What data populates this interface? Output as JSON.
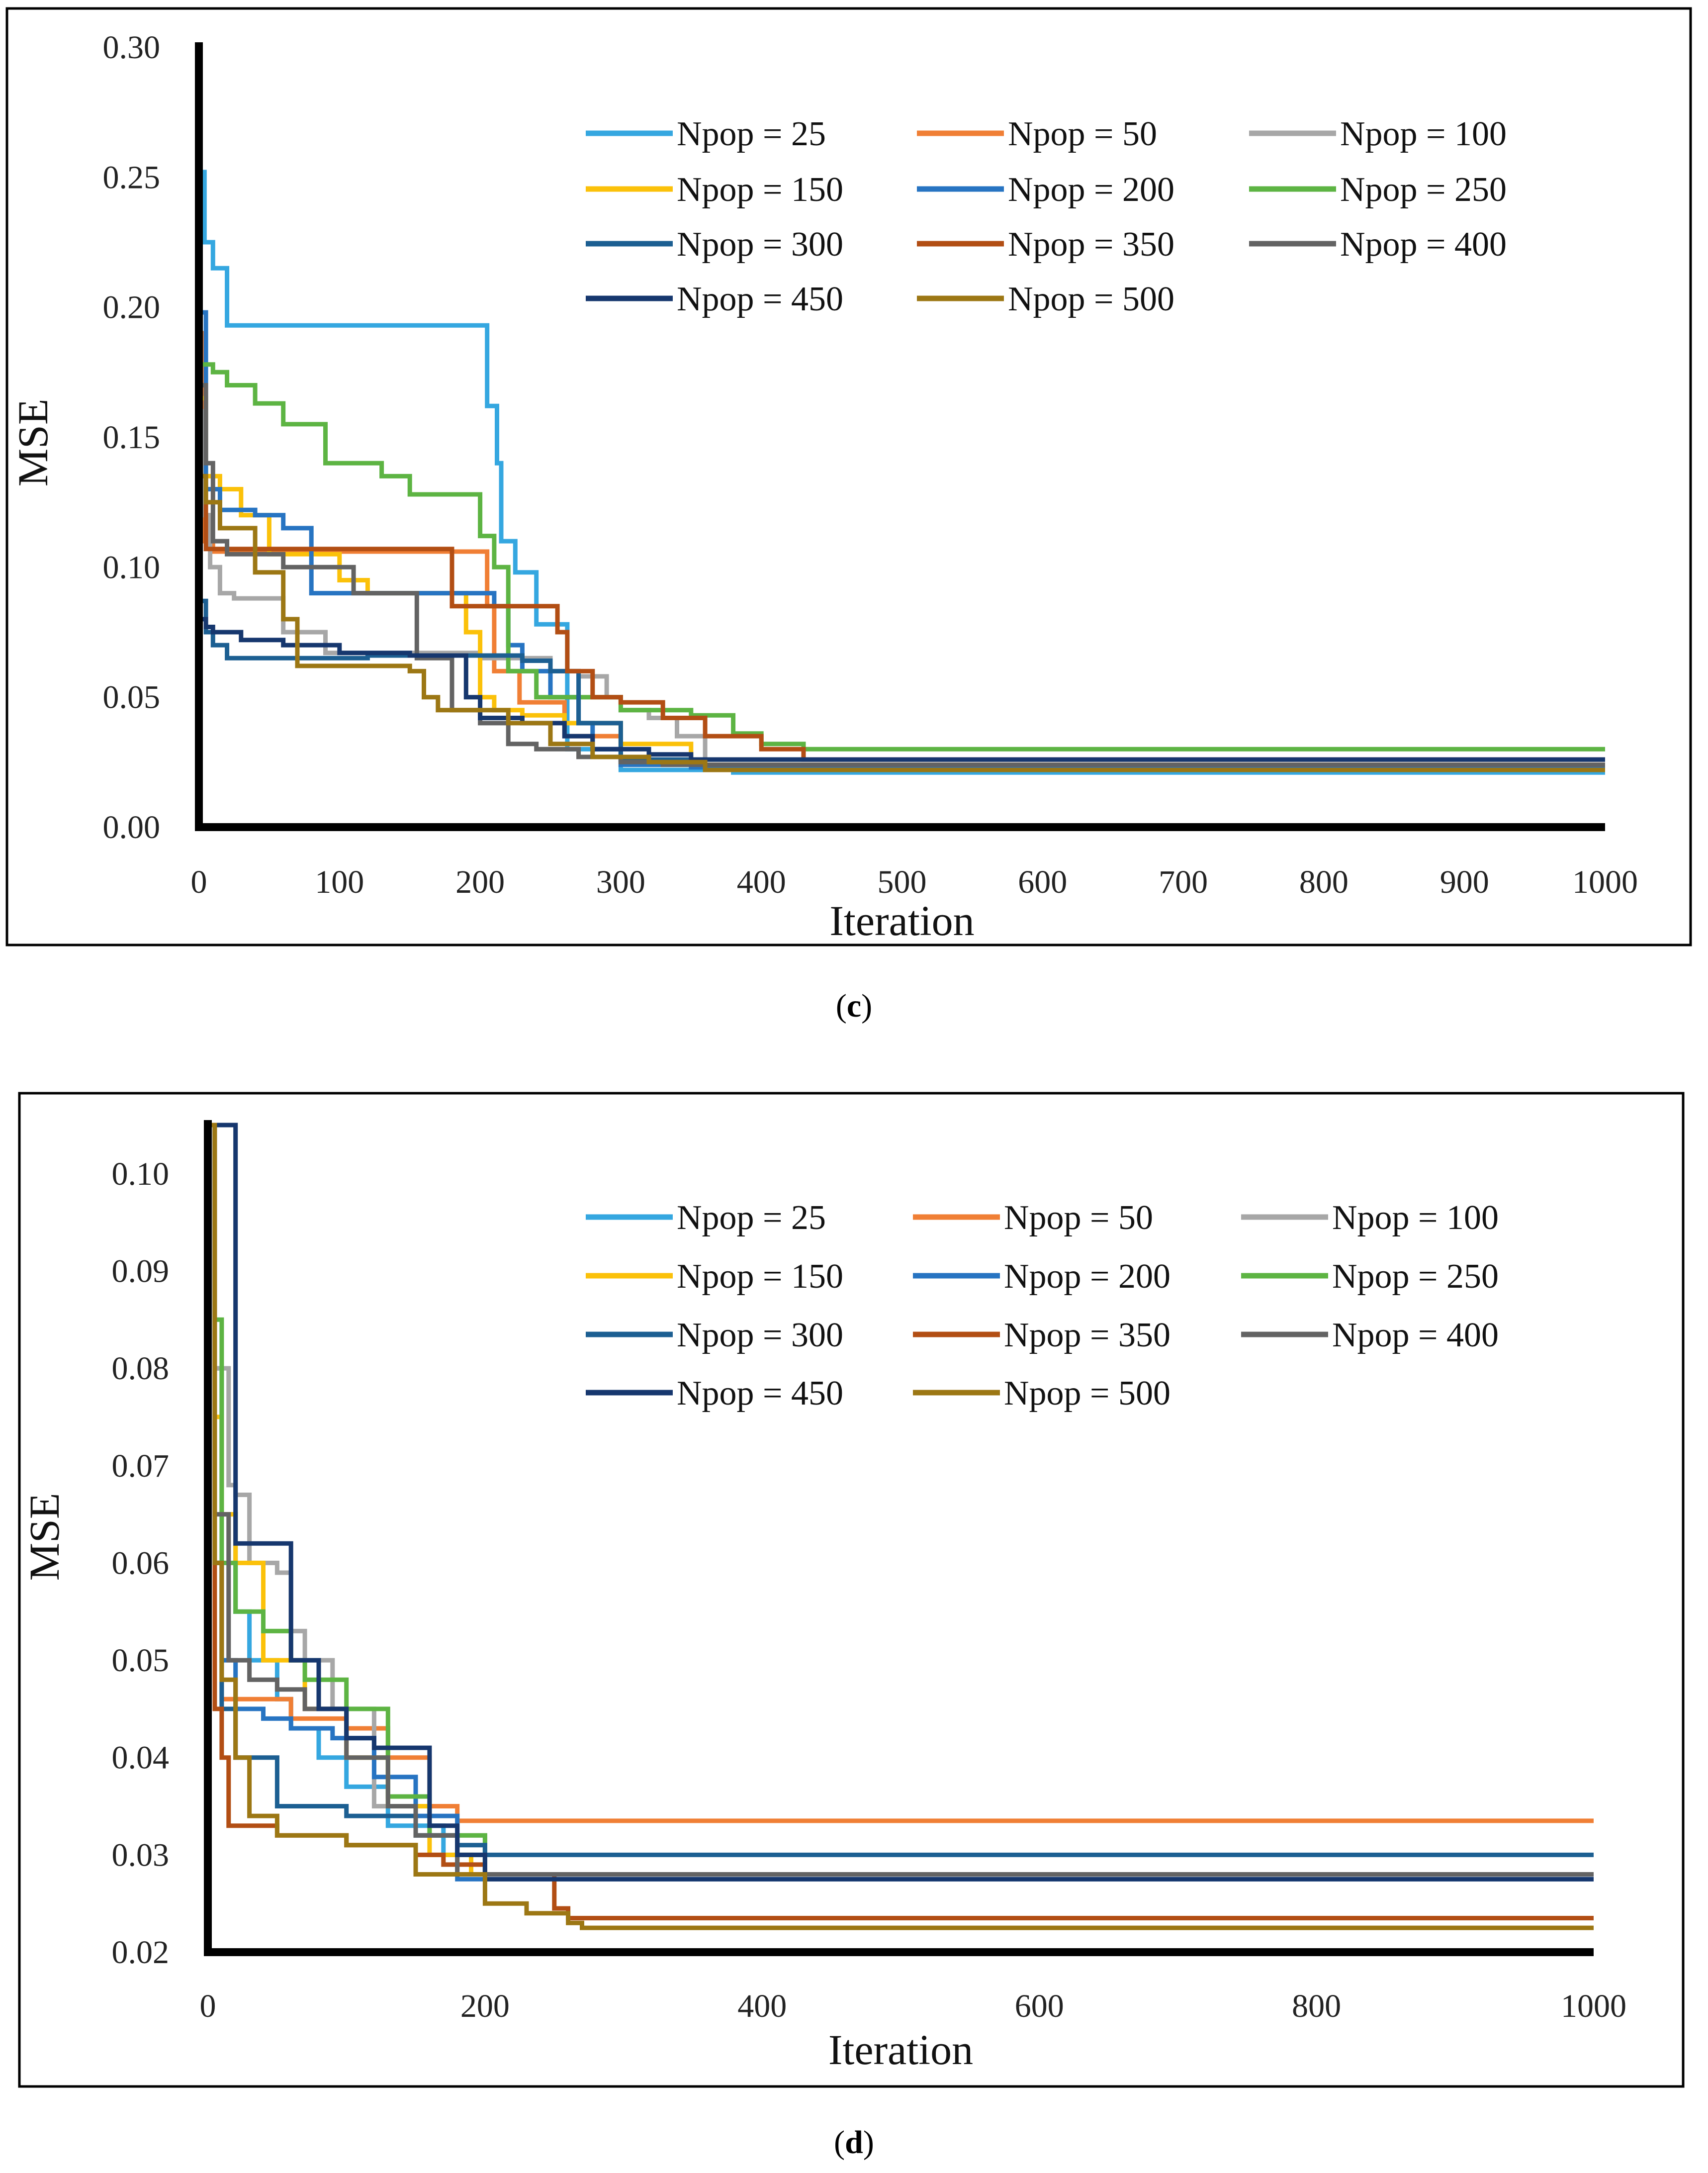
{
  "figure_c": {
    "caption_open": "(",
    "caption_letter": "c",
    "caption_close": ")"
  },
  "figure_d": {
    "caption_open": "(",
    "caption_letter": "d",
    "caption_close": ")"
  },
  "series_colors": {
    "Npop = 25": "#35A7E0",
    "Npop = 50": "#F07F35",
    "Npop = 100": "#A7A7A7",
    "Npop = 150": "#FBC10A",
    "Npop = 200": "#2774C2",
    "Npop = 250": "#5DB443",
    "Npop = 300": "#1C5F92",
    "Npop = 350": "#B24E14",
    "Npop = 400": "#636363",
    "Npop = 450": "#16376E",
    "Npop = 500": "#9C7714"
  },
  "chart_data": [
    {
      "id": "c",
      "type": "line",
      "xlabel": "Iteration",
      "ylabel": "MSE",
      "xlim": [
        0,
        1000
      ],
      "ylim": [
        0,
        0.3
      ],
      "xticks": [
        "0",
        "100",
        "200",
        "300",
        "400",
        "500",
        "600",
        "700",
        "800",
        "900",
        "1000"
      ],
      "yticks": [
        "0.00",
        "0.05",
        "0.10",
        "0.15",
        "0.20",
        "0.25",
        "0.30"
      ],
      "legend": [
        "Npop = 25",
        "Npop = 50",
        "Npop = 100",
        "Npop = 150",
        "Npop = 200",
        "Npop = 250",
        "Npop = 300",
        "Npop = 350",
        "Npop = 400",
        "Npop = 450",
        "Npop = 500"
      ],
      "series": [
        {
          "name": "Npop = 25",
          "x": [
            0,
            4,
            10,
            20,
            200,
            205,
            212,
            215,
            225,
            240,
            262,
            300,
            380,
            1000
          ],
          "y": [
            0.252,
            0.225,
            0.215,
            0.193,
            0.193,
            0.162,
            0.14,
            0.11,
            0.098,
            0.078,
            0.03,
            0.022,
            0.021,
            0.021
          ]
        },
        {
          "name": "Npop = 50",
          "x": [
            0,
            3,
            10,
            200,
            205,
            210,
            228,
            260,
            300,
            1000
          ],
          "y": [
            0.19,
            0.11,
            0.106,
            0.106,
            0.085,
            0.06,
            0.048,
            0.035,
            0.024,
            0.024
          ]
        },
        {
          "name": "Npop = 100",
          "x": [
            0,
            4,
            8,
            15,
            25,
            60,
            90,
            200,
            250,
            270,
            290,
            300,
            320,
            340,
            360,
            1000
          ],
          "y": [
            0.16,
            0.12,
            0.1,
            0.09,
            0.088,
            0.075,
            0.067,
            0.065,
            0.06,
            0.058,
            0.05,
            0.045,
            0.042,
            0.035,
            0.026,
            0.026
          ]
        },
        {
          "name": "Npop = 150",
          "x": [
            0,
            5,
            15,
            30,
            50,
            100,
            120,
            190,
            200,
            210,
            230,
            260,
            300,
            350,
            1000
          ],
          "y": [
            0.165,
            0.135,
            0.13,
            0.12,
            0.105,
            0.095,
            0.09,
            0.075,
            0.05,
            0.045,
            0.043,
            0.04,
            0.032,
            0.026,
            0.026
          ]
        },
        {
          "name": "Npop = 200",
          "x": [
            0,
            5,
            15,
            40,
            60,
            80,
            150,
            210,
            220,
            230,
            250,
            270,
            280,
            300,
            350,
            1000
          ],
          "y": [
            0.198,
            0.13,
            0.122,
            0.12,
            0.115,
            0.09,
            0.09,
            0.085,
            0.07,
            0.06,
            0.05,
            0.04,
            0.03,
            0.024,
            0.023,
            0.023
          ]
        },
        {
          "name": "Npop = 250",
          "x": [
            0,
            10,
            20,
            40,
            60,
            90,
            130,
            150,
            200,
            210,
            220,
            240,
            300,
            350,
            380,
            400,
            430,
            1000
          ],
          "y": [
            0.178,
            0.175,
            0.17,
            0.163,
            0.155,
            0.14,
            0.135,
            0.128,
            0.112,
            0.1,
            0.06,
            0.05,
            0.045,
            0.043,
            0.036,
            0.032,
            0.03,
            0.03
          ]
        },
        {
          "name": "Npop = 300",
          "x": [
            0,
            5,
            10,
            20,
            60,
            120,
            180,
            230,
            250,
            270,
            300,
            1000
          ],
          "y": [
            0.087,
            0.075,
            0.07,
            0.065,
            0.065,
            0.066,
            0.066,
            0.064,
            0.06,
            0.04,
            0.026,
            0.026
          ]
        },
        {
          "name": "Npop = 350",
          "x": [
            0,
            5,
            30,
            100,
            160,
            180,
            250,
            255,
            262,
            280,
            300,
            330,
            360,
            400,
            430,
            1000
          ],
          "y": [
            0.135,
            0.107,
            0.107,
            0.107,
            0.107,
            0.085,
            0.085,
            0.075,
            0.06,
            0.05,
            0.048,
            0.042,
            0.035,
            0.03,
            0.026,
            0.026
          ]
        },
        {
          "name": "Npop = 400",
          "x": [
            0,
            5,
            10,
            20,
            60,
            110,
            150,
            155,
            180,
            200,
            220,
            240,
            270,
            300,
            330,
            1000
          ],
          "y": [
            0.17,
            0.14,
            0.11,
            0.105,
            0.1,
            0.09,
            0.09,
            0.065,
            0.045,
            0.04,
            0.032,
            0.03,
            0.027,
            0.025,
            0.024,
            0.024
          ]
        },
        {
          "name": "Npop = 450",
          "x": [
            0,
            5,
            10,
            30,
            60,
            100,
            150,
            180,
            190,
            200,
            230,
            260,
            280,
            320,
            350,
            1000
          ],
          "y": [
            0.08,
            0.077,
            0.075,
            0.072,
            0.07,
            0.067,
            0.066,
            0.066,
            0.05,
            0.042,
            0.04,
            0.035,
            0.03,
            0.028,
            0.026,
            0.026
          ]
        },
        {
          "name": "Npop = 500",
          "x": [
            0,
            5,
            15,
            40,
            60,
            70,
            100,
            150,
            160,
            170,
            220,
            250,
            280,
            320,
            360,
            1000
          ],
          "y": [
            0.135,
            0.125,
            0.115,
            0.098,
            0.08,
            0.062,
            0.062,
            0.06,
            0.05,
            0.045,
            0.04,
            0.032,
            0.027,
            0.025,
            0.022,
            0.022
          ]
        }
      ]
    },
    {
      "id": "d",
      "type": "line",
      "xlabel": "Iteration",
      "ylabel": "MSE",
      "xlim": [
        0,
        1000
      ],
      "ylim": [
        0.02,
        0.105
      ],
      "xticks": [
        "0",
        "200",
        "400",
        "600",
        "800",
        "1000"
      ],
      "yticks": [
        "0.02",
        "0.03",
        "0.04",
        "0.05",
        "0.06",
        "0.07",
        "0.08",
        "0.09",
        "0.10"
      ],
      "legend": [
        "Npop = 25",
        "Npop = 50",
        "Npop = 100",
        "Npop = 150",
        "Npop = 200",
        "Npop = 250",
        "Npop = 300",
        "Npop = 350",
        "Npop = 400",
        "Npop = 450",
        "Npop = 500"
      ],
      "series": [
        {
          "name": "Npop = 25",
          "x": [
            0,
            5,
            10,
            20,
            30,
            50,
            60,
            80,
            100,
            130,
            170,
            200,
            1000
          ],
          "y": [
            0.105,
            0.08,
            0.065,
            0.055,
            0.05,
            0.046,
            0.043,
            0.04,
            0.037,
            0.033,
            0.03,
            0.028,
            0.028
          ]
        },
        {
          "name": "Npop = 50",
          "x": [
            0,
            5,
            10,
            20,
            60,
            100,
            130,
            160,
            180,
            1000
          ],
          "y": [
            0.105,
            0.06,
            0.046,
            0.046,
            0.044,
            0.043,
            0.04,
            0.035,
            0.0335,
            0.0335
          ]
        },
        {
          "name": "Npop = 100",
          "x": [
            0,
            5,
            15,
            20,
            30,
            40,
            50,
            60,
            70,
            90,
            120,
            150,
            200,
            1000
          ],
          "y": [
            0.105,
            0.08,
            0.068,
            0.067,
            0.06,
            0.06,
            0.059,
            0.053,
            0.05,
            0.045,
            0.035,
            0.032,
            0.028,
            0.028
          ]
        },
        {
          "name": "Npop = 150",
          "x": [
            0,
            5,
            10,
            20,
            40,
            70,
            100,
            130,
            160,
            190,
            1000
          ],
          "y": [
            0.105,
            0.075,
            0.065,
            0.06,
            0.05,
            0.045,
            0.04,
            0.035,
            0.03,
            0.028,
            0.028
          ]
        },
        {
          "name": "Npop = 200",
          "x": [
            0,
            5,
            10,
            20,
            40,
            60,
            90,
            120,
            150,
            180,
            1000
          ],
          "y": [
            0.105,
            0.06,
            0.05,
            0.045,
            0.044,
            0.043,
            0.042,
            0.038,
            0.034,
            0.0275,
            0.0275
          ]
        },
        {
          "name": "Npop = 250",
          "x": [
            0,
            5,
            10,
            20,
            40,
            60,
            70,
            100,
            130,
            160,
            200,
            1000
          ],
          "y": [
            0.105,
            0.085,
            0.06,
            0.055,
            0.053,
            0.05,
            0.048,
            0.045,
            0.036,
            0.032,
            0.028,
            0.028
          ]
        },
        {
          "name": "Npop = 300",
          "x": [
            0,
            5,
            10,
            20,
            50,
            100,
            150,
            180,
            200,
            1000
          ],
          "y": [
            0.105,
            0.06,
            0.045,
            0.04,
            0.035,
            0.034,
            0.032,
            0.031,
            0.03,
            0.03
          ]
        },
        {
          "name": "Npop = 350",
          "x": [
            0,
            5,
            10,
            15,
            50,
            100,
            150,
            170,
            200,
            250,
            260,
            1000
          ],
          "y": [
            0.105,
            0.045,
            0.04,
            0.033,
            0.032,
            0.031,
            0.03,
            0.029,
            0.028,
            0.0245,
            0.0235,
            0.0235
          ]
        },
        {
          "name": "Npop = 400",
          "x": [
            0,
            5,
            15,
            30,
            50,
            70,
            100,
            130,
            150,
            180,
            220,
            1000
          ],
          "y": [
            0.105,
            0.065,
            0.05,
            0.048,
            0.047,
            0.045,
            0.04,
            0.035,
            0.032,
            0.028,
            0.028,
            0.028
          ]
        },
        {
          "name": "Npop = 450",
          "x": [
            0,
            5,
            15,
            20,
            40,
            60,
            80,
            100,
            120,
            140,
            160,
            180,
            200,
            1000
          ],
          "y": [
            0.105,
            0.105,
            0.105,
            0.062,
            0.062,
            0.05,
            0.045,
            0.042,
            0.041,
            0.041,
            0.033,
            0.03,
            0.0275,
            0.0275
          ]
        },
        {
          "name": "Npop = 500",
          "x": [
            0,
            5,
            10,
            20,
            30,
            50,
            100,
            150,
            200,
            230,
            260,
            270,
            1000
          ],
          "y": [
            0.105,
            0.06,
            0.048,
            0.04,
            0.034,
            0.032,
            0.031,
            0.028,
            0.025,
            0.024,
            0.023,
            0.0225,
            0.0225
          ]
        }
      ]
    }
  ]
}
